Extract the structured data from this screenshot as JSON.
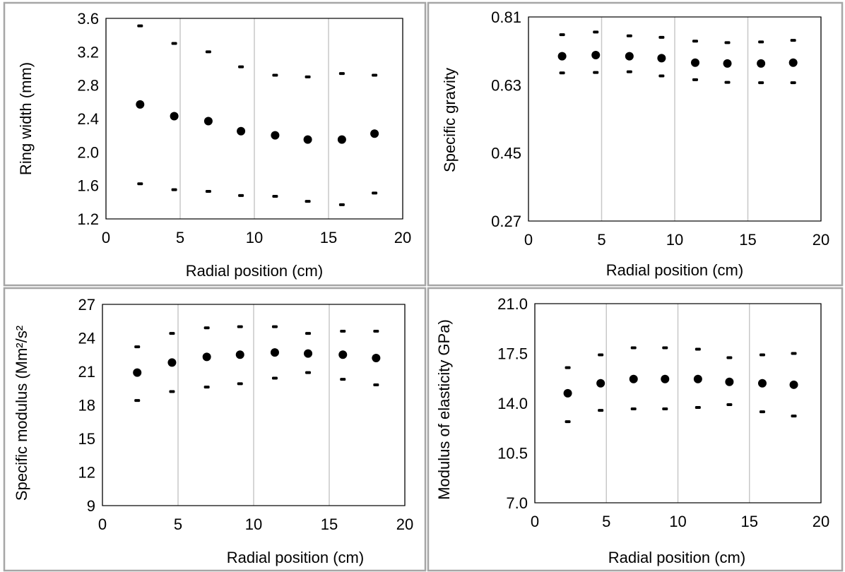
{
  "chart_data": [
    {
      "type": "scatter",
      "xlabel": "Radial position (cm)",
      "ylabel": "Ring width (mm)",
      "xlim": [
        0,
        20
      ],
      "ylim": [
        1.2,
        3.6
      ],
      "xticks": [
        "0",
        "5",
        "10",
        "15",
        "20"
      ],
      "yticks": [
        "1.2",
        "1.6",
        "2.0",
        "2.4",
        "2.8",
        "3.2",
        "3.6"
      ],
      "grid": "vertical",
      "x": [
        2.3,
        4.6,
        6.9,
        9.1,
        11.4,
        13.6,
        15.9,
        18.1
      ],
      "series": [
        {
          "values": [
            2.57,
            2.43,
            2.37,
            2.25,
            2.2,
            2.15,
            2.15,
            2.22
          ]
        },
        {
          "values": [
            3.51,
            3.3,
            3.2,
            3.02,
            2.92,
            2.9,
            2.94,
            2.92
          ]
        },
        {
          "values": [
            1.62,
            1.55,
            1.53,
            1.48,
            1.47,
            1.41,
            1.37,
            1.51
          ]
        }
      ]
    },
    {
      "type": "scatter",
      "xlabel": "Radial position (cm)",
      "ylabel": "Specific gravity",
      "xlim": [
        0,
        20
      ],
      "ylim": [
        0.27,
        0.81
      ],
      "xticks": [
        "0",
        "5",
        "10",
        "15",
        "20"
      ],
      "yticks": [
        "0.27",
        "0.45",
        "0.63",
        "0.81"
      ],
      "grid": "vertical",
      "x": [
        2.3,
        4.6,
        6.9,
        9.1,
        11.4,
        13.6,
        15.9,
        18.1
      ],
      "series": [
        {
          "values": [
            0.706,
            0.709,
            0.706,
            0.701,
            0.689,
            0.687,
            0.687,
            0.689
          ]
        },
        {
          "values": [
            0.763,
            0.77,
            0.76,
            0.756,
            0.746,
            0.742,
            0.744,
            0.748
          ]
        },
        {
          "values": [
            0.662,
            0.663,
            0.665,
            0.654,
            0.644,
            0.637,
            0.636,
            0.636
          ]
        }
      ]
    },
    {
      "type": "scatter",
      "xlabel": "Radial position (cm)",
      "ylabel": "Specific modulus (Mm²/s²",
      "xlim": [
        0,
        20
      ],
      "ylim": [
        9,
        27
      ],
      "xticks": [
        "0",
        "5",
        "10",
        "15",
        "20"
      ],
      "yticks": [
        "9",
        "12",
        "15",
        "18",
        "21",
        "24",
        "27"
      ],
      "grid": "vertical",
      "x": [
        2.3,
        4.6,
        6.9,
        9.1,
        11.4,
        13.6,
        15.9,
        18.1
      ],
      "series": [
        {
          "values": [
            20.9,
            21.8,
            22.3,
            22.5,
            22.7,
            22.6,
            22.5,
            22.2
          ]
        },
        {
          "values": [
            23.2,
            24.4,
            24.9,
            25.0,
            25.0,
            24.4,
            24.6,
            24.6
          ]
        },
        {
          "values": [
            18.4,
            19.2,
            19.6,
            19.9,
            20.4,
            20.9,
            20.3,
            19.8
          ]
        }
      ]
    },
    {
      "type": "scatter",
      "xlabel": "Radial position (cm)",
      "ylabel": "Modulus of elasticity GPa)",
      "xlim": [
        0,
        20
      ],
      "ylim": [
        7.0,
        21.0
      ],
      "xticks": [
        "0",
        "5",
        "10",
        "15",
        "20"
      ],
      "yticks": [
        "7.0",
        "10.5",
        "14.0",
        "17.5",
        "21.0"
      ],
      "grid": "vertical",
      "x": [
        2.3,
        4.6,
        6.9,
        9.1,
        11.4,
        13.6,
        15.9,
        18.1
      ],
      "series": [
        {
          "values": [
            14.7,
            15.4,
            15.7,
            15.7,
            15.7,
            15.5,
            15.4,
            15.3
          ]
        },
        {
          "values": [
            16.5,
            17.4,
            17.9,
            17.9,
            17.8,
            17.2,
            17.4,
            17.5
          ]
        },
        {
          "values": [
            12.7,
            13.5,
            13.6,
            13.6,
            13.7,
            13.9,
            13.4,
            13.1
          ]
        }
      ]
    }
  ]
}
